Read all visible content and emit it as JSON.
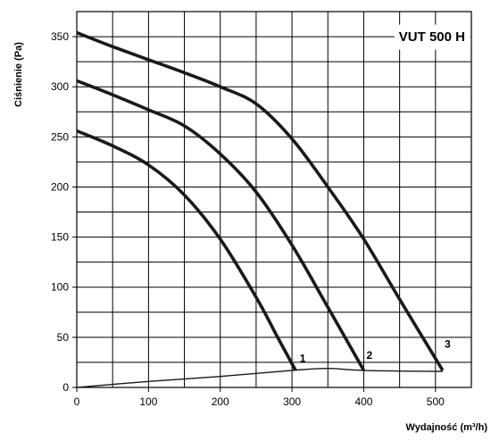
{
  "chart_data": {
    "type": "line",
    "title": "VUT 500 H",
    "xlabel": "Wydajność (m³/h)",
    "ylabel": "Ciśnienie (Pa)",
    "xlim": [
      0,
      550
    ],
    "ylim": [
      0,
      375
    ],
    "x_ticks": [
      0,
      100,
      200,
      300,
      400,
      500
    ],
    "y_ticks": [
      0,
      50,
      100,
      150,
      200,
      250,
      300,
      350
    ],
    "x_grid": [
      50,
      100,
      150,
      200,
      250,
      300,
      350,
      400,
      450,
      500,
      550
    ],
    "y_grid": [
      25,
      50,
      75,
      100,
      125,
      150,
      175,
      200,
      225,
      250,
      275,
      300,
      325,
      350,
      375
    ],
    "grid": true,
    "series": [
      {
        "name": "1",
        "points": [
          [
            0,
            256
          ],
          [
            50,
            241
          ],
          [
            100,
            222
          ],
          [
            150,
            192
          ],
          [
            200,
            148
          ],
          [
            250,
            90
          ],
          [
            280,
            50
          ],
          [
            305,
            17
          ]
        ]
      },
      {
        "name": "2",
        "points": [
          [
            0,
            306
          ],
          [
            50,
            292
          ],
          [
            100,
            277
          ],
          [
            150,
            261
          ],
          [
            200,
            233
          ],
          [
            250,
            195
          ],
          [
            300,
            142
          ],
          [
            350,
            80
          ],
          [
            400,
            17
          ]
        ]
      },
      {
        "name": "3",
        "points": [
          [
            0,
            354
          ],
          [
            50,
            340
          ],
          [
            100,
            327
          ],
          [
            150,
            314
          ],
          [
            200,
            300
          ],
          [
            250,
            283
          ],
          [
            300,
            248
          ],
          [
            350,
            200
          ],
          [
            400,
            148
          ],
          [
            450,
            88
          ],
          [
            510,
            17
          ]
        ]
      },
      {
        "name": "system",
        "points": [
          [
            0,
            0
          ],
          [
            100,
            6
          ],
          [
            200,
            11
          ],
          [
            300,
            17
          ],
          [
            350,
            19
          ],
          [
            400,
            17
          ],
          [
            510,
            16
          ]
        ]
      }
    ],
    "labels": [
      {
        "text": "1",
        "x": 315,
        "y": 29
      },
      {
        "text": "2",
        "x": 408,
        "y": 32
      },
      {
        "text": "3",
        "x": 517,
        "y": 43
      }
    ]
  }
}
